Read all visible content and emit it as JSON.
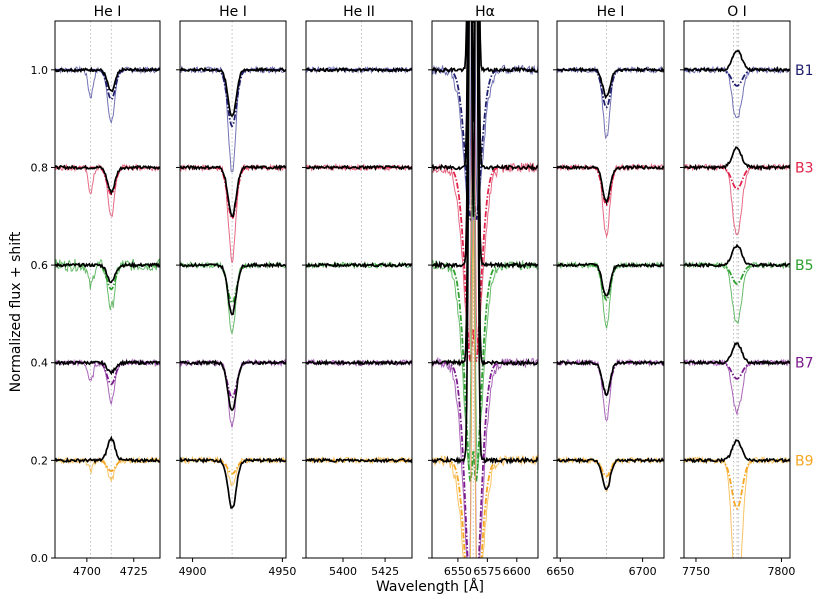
{
  "chart_data": {
    "type": "line",
    "ylabel": "Normalized flux + shift",
    "xlabel": "Wavelength [Å]",
    "ylim": [
      0.0,
      1.1
    ],
    "y_ticks": [
      "0.0",
      "0.2",
      "0.4",
      "0.6",
      "0.8",
      "1.0"
    ],
    "y_tick_values": [
      0.0,
      0.2,
      0.4,
      0.6,
      0.8,
      1.0
    ],
    "grid": "vertical dotted lines at line centers",
    "legend_placement": "labels right of last panel",
    "series": [
      {
        "name": "B1",
        "offset": 1.0,
        "color": "#1f1f6e",
        "light": "#5a5aa8"
      },
      {
        "name": "B3",
        "offset": 0.8,
        "color": "#e0234a",
        "light": "#e0506e"
      },
      {
        "name": "B5",
        "offset": 0.6,
        "color": "#2e9e2e",
        "light": "#4caf50"
      },
      {
        "name": "B7",
        "offset": 0.4,
        "color": "#7a1a8c",
        "light": "#9a4aab"
      },
      {
        "name": "B9",
        "offset": 0.2,
        "color": "#f5a623",
        "light": "#f7b84a"
      }
    ],
    "panels": [
      {
        "title": "He I",
        "xlim": [
          4683,
          4739
        ],
        "ticks": [
          4700,
          4725
        ],
        "center": 4713,
        "lines": [
          4702,
          4713
        ],
        "obs": [
          0.045,
          0.05,
          0.035,
          0.02,
          -0.045
        ],
        "model": [
          0.11,
          0.1,
          0.09,
          0.08,
          0.04
        ],
        "width": 2.2
      },
      {
        "title": "He I",
        "xlim": [
          4893,
          4952
        ],
        "ticks": [
          4900,
          4950
        ],
        "center": 4922,
        "lines": [
          4922
        ],
        "obs": [
          0.095,
          0.1,
          0.1,
          0.1,
          0.1
        ],
        "model": [
          0.21,
          0.19,
          0.14,
          0.13,
          0.05
        ],
        "width": 2.5
      },
      {
        "title": "He II",
        "xlim": [
          5378,
          5441
        ],
        "ticks": [
          5400,
          5425
        ],
        "center": 5411,
        "lines": [
          5411
        ],
        "obs": [
          0.0,
          0.0,
          0.0,
          0.0,
          0.0
        ],
        "model": [
          0.0,
          0.0,
          0.0,
          0.0,
          0.0
        ],
        "width": 2.5
      },
      {
        "title": "Hα",
        "xlim": [
          6528,
          6618
        ],
        "ticks": [
          6550,
          6575,
          6600
        ],
        "center": 6563,
        "lines": [
          6563
        ],
        "obs": [
          0.0,
          0.0,
          0.0,
          0.0,
          0.0
        ],
        "model": [
          0.35,
          0.45,
          0.5,
          0.55,
          0.4
        ],
        "width": 5
      },
      {
        "title": "He I",
        "xlim": [
          6648,
          6713
        ],
        "ticks": [
          6650,
          6700
        ],
        "center": 6678,
        "lines": [
          6678
        ],
        "obs": [
          0.055,
          0.07,
          0.065,
          0.065,
          0.06
        ],
        "model": [
          0.14,
          0.14,
          0.13,
          0.12,
          0.06
        ],
        "width": 2.5
      },
      {
        "title": "O I",
        "xlim": [
          7743,
          7805
        ],
        "ticks": [
          7750,
          7800
        ],
        "center": 7774,
        "lines": [
          7772,
          7774,
          7775
        ],
        "obs": [
          -0.04,
          -0.04,
          -0.04,
          -0.04,
          -0.04
        ],
        "model": [
          0.06,
          0.08,
          0.07,
          0.06,
          0.18
        ],
        "width": 3
      }
    ]
  }
}
